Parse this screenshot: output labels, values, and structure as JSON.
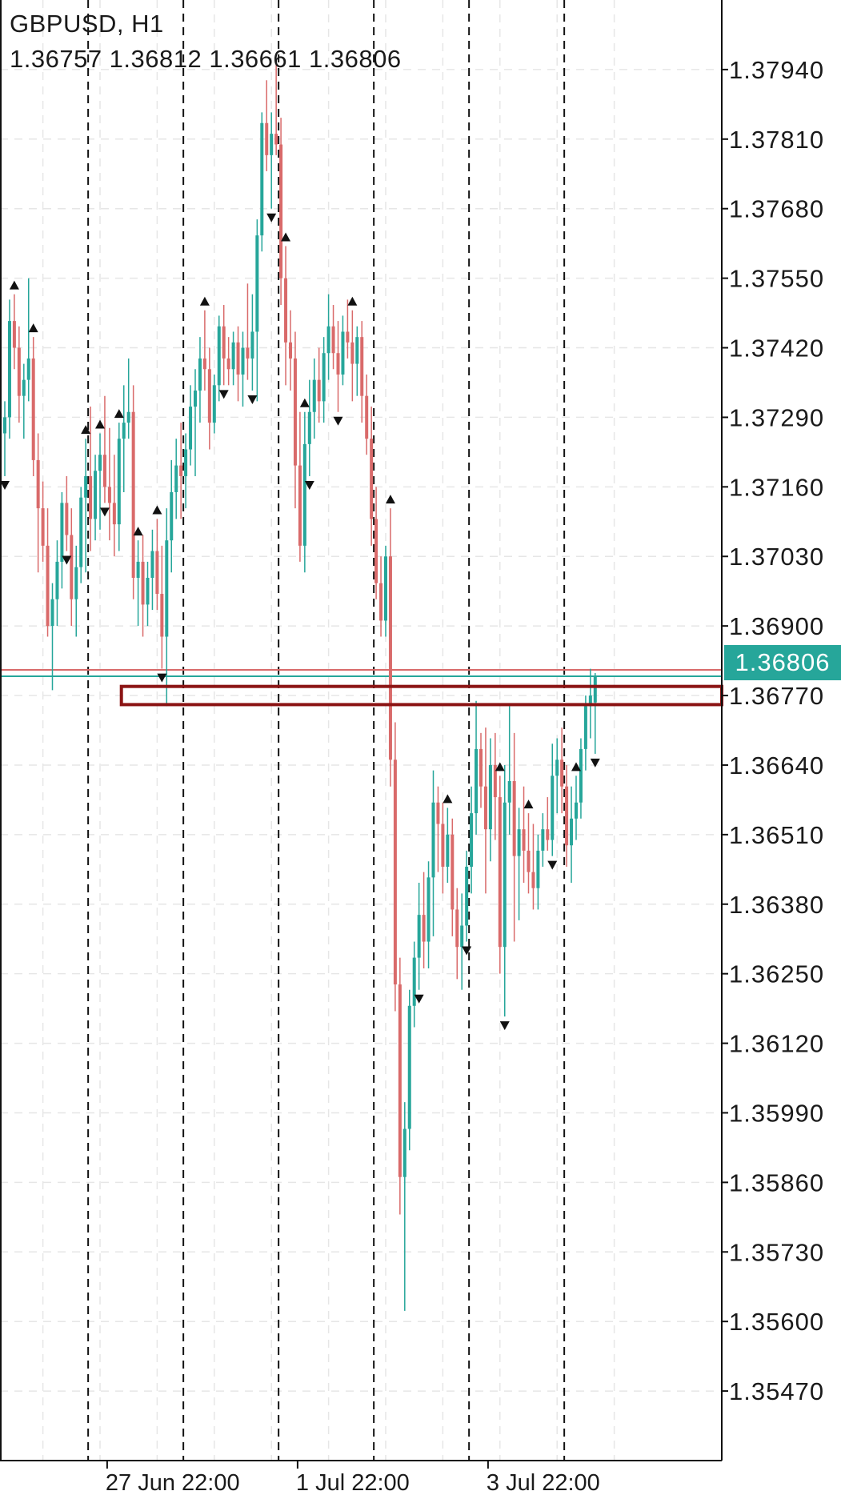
{
  "header": {
    "symbol": "GBPUSD, H1",
    "ohlc": "1.36757 1.36812 1.36661 1.36806"
  },
  "current_price_label": "1.36806",
  "colors": {
    "bull": "#26a69a",
    "bear": "#d96a6a",
    "grid": "#e6e6e6",
    "zone": "#8b1414",
    "bid_line": "#26a69a",
    "ask_line": "#d96a6a"
  },
  "chart_data": {
    "type": "candlestick",
    "title": "GBPUSD, H1",
    "ylim": [
      1.3534,
      1.3807
    ],
    "y_ticks": [
      1.3794,
      1.3781,
      1.3768,
      1.3755,
      1.3742,
      1.3729,
      1.3716,
      1.3703,
      1.369,
      1.3677,
      1.3664,
      1.3651,
      1.3638,
      1.3625,
      1.3612,
      1.3599,
      1.3586,
      1.3573,
      1.356,
      1.3547
    ],
    "y_tick_labels": [
      "1.37940",
      "1.37810",
      "1.37680",
      "1.37550",
      "1.37420",
      "1.37290",
      "1.37160",
      "1.37030",
      "1.36900",
      "1.36770",
      "1.36640",
      "1.36510",
      "1.36380",
      "1.36250",
      "1.36120",
      "1.35990",
      "1.35860",
      "1.35730",
      "1.35600",
      "1.35470"
    ],
    "x_labels": [
      {
        "label": "27 Jun 22:00",
        "bar": 22
      },
      {
        "label": "1 Jul 22:00",
        "bar": 62
      },
      {
        "label": "3 Jul 22:00",
        "bar": 102
      }
    ],
    "bar_count": 126,
    "day_separator_bars": [
      17,
      37,
      57,
      77,
      97,
      117
    ],
    "last_price": 1.36806,
    "ask_price": 1.36818,
    "zone": {
      "from_bar": 26,
      "high": 1.36787,
      "low": 1.36753
    },
    "candles": [
      [
        1.3726,
        1.3732,
        1.3718,
        1.3729
      ],
      [
        1.3729,
        1.3751,
        1.3725,
        1.3747
      ],
      [
        1.3747,
        1.3752,
        1.3738,
        1.3742
      ],
      [
        1.3742,
        1.3746,
        1.3728,
        1.3733
      ],
      [
        1.3733,
        1.3739,
        1.3725,
        1.3736
      ],
      [
        1.3736,
        1.3755,
        1.3732,
        1.374
      ],
      [
        1.374,
        1.3744,
        1.3718,
        1.3721
      ],
      [
        1.3721,
        1.3726,
        1.37,
        1.3712
      ],
      [
        1.3712,
        1.3717,
        1.3702,
        1.3705
      ],
      [
        1.3705,
        1.3712,
        1.3688,
        1.369
      ],
      [
        1.369,
        1.3698,
        1.3678,
        1.3695
      ],
      [
        1.3695,
        1.3706,
        1.369,
        1.3702
      ],
      [
        1.3702,
        1.3715,
        1.3697,
        1.3713
      ],
      [
        1.3713,
        1.3718,
        1.3704,
        1.3707
      ],
      [
        1.3707,
        1.3712,
        1.369,
        1.3695
      ],
      [
        1.3695,
        1.3705,
        1.3688,
        1.3701
      ],
      [
        1.3701,
        1.3716,
        1.3698,
        1.3714
      ],
      [
        1.3714,
        1.3725,
        1.37,
        1.3718
      ],
      [
        1.3718,
        1.3731,
        1.3704,
        1.371
      ],
      [
        1.371,
        1.3722,
        1.3706,
        1.3719
      ],
      [
        1.3719,
        1.3726,
        1.3708,
        1.3722
      ],
      [
        1.3722,
        1.3733,
        1.3713,
        1.3716
      ],
      [
        1.3716,
        1.3727,
        1.3706,
        1.3713
      ],
      [
        1.3713,
        1.3722,
        1.3703,
        1.3709
      ],
      [
        1.3709,
        1.3728,
        1.3704,
        1.3725
      ],
      [
        1.3725,
        1.3735,
        1.3715,
        1.3728
      ],
      [
        1.3728,
        1.374,
        1.3725,
        1.373
      ],
      [
        1.373,
        1.3735,
        1.3695,
        1.3699
      ],
      [
        1.3699,
        1.3706,
        1.369,
        1.3702
      ],
      [
        1.3702,
        1.3707,
        1.3688,
        1.3694
      ],
      [
        1.3694,
        1.3702,
        1.369,
        1.3699
      ],
      [
        1.3699,
        1.3708,
        1.3693,
        1.3704
      ],
      [
        1.3704,
        1.371,
        1.3693,
        1.3696
      ],
      [
        1.3696,
        1.3705,
        1.3682,
        1.3688
      ],
      [
        1.3688,
        1.3712,
        1.3675,
        1.3706
      ],
      [
        1.3706,
        1.3721,
        1.37,
        1.3715
      ],
      [
        1.3715,
        1.3725,
        1.371,
        1.372
      ],
      [
        1.372,
        1.3728,
        1.371,
        1.3718
      ],
      [
        1.3718,
        1.3726,
        1.3712,
        1.3723
      ],
      [
        1.3723,
        1.3735,
        1.372,
        1.3731
      ],
      [
        1.3731,
        1.3738,
        1.3718,
        1.3734
      ],
      [
        1.3734,
        1.3744,
        1.3728,
        1.374
      ],
      [
        1.374,
        1.3749,
        1.3734,
        1.3738
      ],
      [
        1.3738,
        1.3742,
        1.3723,
        1.3728
      ],
      [
        1.3728,
        1.3737,
        1.3726,
        1.3735
      ],
      [
        1.3735,
        1.3748,
        1.3732,
        1.3746
      ],
      [
        1.3746,
        1.375,
        1.3735,
        1.374
      ],
      [
        1.374,
        1.3744,
        1.3735,
        1.3738
      ],
      [
        1.3738,
        1.3745,
        1.3735,
        1.3743
      ],
      [
        1.3743,
        1.3746,
        1.3732,
        1.3737
      ],
      [
        1.3737,
        1.3745,
        1.3731,
        1.3742
      ],
      [
        1.3742,
        1.3754,
        1.3736,
        1.374
      ],
      [
        1.374,
        1.3752,
        1.3734,
        1.3745
      ],
      [
        1.3745,
        1.3766,
        1.3732,
        1.3763
      ],
      [
        1.3763,
        1.3786,
        1.376,
        1.3784
      ],
      [
        1.3784,
        1.3792,
        1.3775,
        1.3778
      ],
      [
        1.3778,
        1.3786,
        1.3768,
        1.3782
      ],
      [
        1.3782,
        1.3796,
        1.3778,
        1.378
      ],
      [
        1.378,
        1.3785,
        1.375,
        1.3755
      ],
      [
        1.3755,
        1.3761,
        1.3735,
        1.3743
      ],
      [
        1.3743,
        1.3749,
        1.3734,
        1.374
      ],
      [
        1.374,
        1.3745,
        1.3712,
        1.372
      ],
      [
        1.372,
        1.373,
        1.3702,
        1.3705
      ],
      [
        1.3705,
        1.373,
        1.37,
        1.3724
      ],
      [
        1.3724,
        1.3736,
        1.3718,
        1.373
      ],
      [
        1.373,
        1.374,
        1.3725,
        1.3736
      ],
      [
        1.3736,
        1.3742,
        1.3728,
        1.3732
      ],
      [
        1.3732,
        1.3744,
        1.3728,
        1.3741
      ],
      [
        1.3741,
        1.3752,
        1.3736,
        1.3746
      ],
      [
        1.3746,
        1.375,
        1.3738,
        1.3741
      ],
      [
        1.3741,
        1.3747,
        1.373,
        1.3737
      ],
      [
        1.3737,
        1.3748,
        1.3735,
        1.3745
      ],
      [
        1.3745,
        1.3751,
        1.374,
        1.3743
      ],
      [
        1.3743,
        1.3749,
        1.3732,
        1.3739
      ],
      [
        1.3739,
        1.3746,
        1.3733,
        1.3744
      ],
      [
        1.3744,
        1.3747,
        1.3728,
        1.3733
      ],
      [
        1.3733,
        1.3737,
        1.3722,
        1.3725
      ],
      [
        1.3725,
        1.3731,
        1.3705,
        1.371
      ],
      [
        1.371,
        1.3716,
        1.3695,
        1.3698
      ],
      [
        1.3698,
        1.3703,
        1.3688,
        1.3691
      ],
      [
        1.3691,
        1.3705,
        1.3688,
        1.3703
      ],
      [
        1.3703,
        1.3712,
        1.366,
        1.3665
      ],
      [
        1.3665,
        1.3672,
        1.3618,
        1.3623
      ],
      [
        1.3623,
        1.3628,
        1.358,
        1.3587
      ],
      [
        1.3587,
        1.3601,
        1.3562,
        1.3596
      ],
      [
        1.3596,
        1.3622,
        1.3592,
        1.3619
      ],
      [
        1.3619,
        1.3631,
        1.3615,
        1.3628
      ],
      [
        1.3628,
        1.3642,
        1.3622,
        1.3636
      ],
      [
        1.3636,
        1.3644,
        1.3626,
        1.3631
      ],
      [
        1.3631,
        1.3646,
        1.3626,
        1.3643
      ],
      [
        1.3643,
        1.3663,
        1.3632,
        1.3657
      ],
      [
        1.3657,
        1.366,
        1.3644,
        1.3653
      ],
      [
        1.3653,
        1.3657,
        1.364,
        1.3645
      ],
      [
        1.3645,
        1.3656,
        1.3642,
        1.3651
      ],
      [
        1.3651,
        1.3654,
        1.3632,
        1.3637
      ],
      [
        1.3637,
        1.3641,
        1.3624,
        1.363
      ],
      [
        1.363,
        1.364,
        1.3622,
        1.3634
      ],
      [
        1.3634,
        1.3648,
        1.3631,
        1.3645
      ],
      [
        1.3645,
        1.366,
        1.364,
        1.3655
      ],
      [
        1.3655,
        1.3676,
        1.3651,
        1.3667
      ],
      [
        1.3667,
        1.367,
        1.3656,
        1.366
      ],
      [
        1.366,
        1.3671,
        1.364,
        1.3652
      ],
      [
        1.3652,
        1.3669,
        1.3646,
        1.3664
      ],
      [
        1.3664,
        1.367,
        1.365,
        1.3658
      ],
      [
        1.3658,
        1.3662,
        1.3625,
        1.363
      ],
      [
        1.363,
        1.3664,
        1.3617,
        1.3657
      ],
      [
        1.3657,
        1.3675,
        1.3651,
        1.3661
      ],
      [
        1.3661,
        1.367,
        1.3631,
        1.3647
      ],
      [
        1.3647,
        1.3656,
        1.3635,
        1.3652
      ],
      [
        1.3652,
        1.366,
        1.3642,
        1.3648
      ],
      [
        1.3648,
        1.3655,
        1.364,
        1.3644
      ],
      [
        1.3644,
        1.3653,
        1.3637,
        1.3641
      ],
      [
        1.3641,
        1.3651,
        1.3637,
        1.3648
      ],
      [
        1.3648,
        1.3655,
        1.3645,
        1.3652
      ],
      [
        1.3652,
        1.3658,
        1.3648,
        1.365
      ],
      [
        1.365,
        1.3668,
        1.3647,
        1.3662
      ],
      [
        1.3662,
        1.3669,
        1.3655,
        1.3665
      ],
      [
        1.3665,
        1.3671,
        1.3655,
        1.366
      ],
      [
        1.366,
        1.3664,
        1.3645,
        1.3649
      ],
      [
        1.3649,
        1.366,
        1.3642,
        1.3654
      ],
      [
        1.3654,
        1.3662,
        1.365,
        1.3657
      ],
      [
        1.3657,
        1.3669,
        1.3654,
        1.3667
      ],
      [
        1.3667,
        1.3677,
        1.3663,
        1.3675
      ],
      [
        1.3675,
        1.3682,
        1.3669,
        1.3677
      ],
      [
        1.36757,
        1.36812,
        1.36661,
        1.36806
      ]
    ],
    "fractal_up_bars": [
      2,
      6,
      17,
      20,
      24,
      28,
      32,
      42,
      59,
      63,
      73,
      81,
      93,
      104,
      110,
      120
    ],
    "fractal_down_bars": [
      0,
      13,
      21,
      33,
      46,
      52,
      56,
      64,
      70,
      87,
      97,
      105,
      115,
      124
    ]
  }
}
